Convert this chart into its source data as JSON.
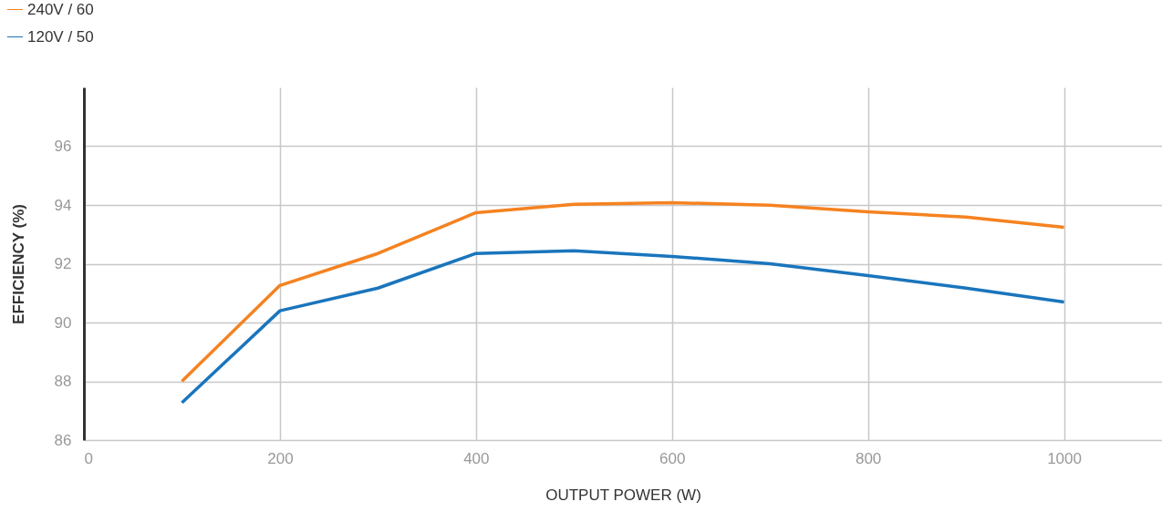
{
  "chart_data": {
    "type": "line",
    "xlabel": "OUTPUT POWER (W)",
    "ylabel": "EFFICIENCY (%)",
    "x": [
      100,
      200,
      300,
      400,
      500,
      600,
      700,
      800,
      900,
      1000
    ],
    "series": [
      {
        "name": "240V / 60",
        "color": "#f58220",
        "values": [
          88.0,
          91.26,
          92.35,
          93.74,
          94.02,
          94.08,
          93.99,
          93.77,
          93.59,
          93.24
        ]
      },
      {
        "name": "120V / 50",
        "color": "#1a75bc",
        "values": [
          87.27,
          90.4,
          91.17,
          92.35,
          92.44,
          92.25,
          92.0,
          91.6,
          91.17,
          90.7
        ]
      }
    ],
    "xlim": [
      0,
      1100
    ],
    "xticks": [
      0,
      200,
      400,
      600,
      800,
      1000
    ],
    "ylim": [
      86,
      98
    ],
    "yticks": [
      86,
      88,
      90,
      92,
      94,
      96
    ],
    "grid": true,
    "legend": "top left",
    "marker": "none",
    "line_style": "solid"
  }
}
